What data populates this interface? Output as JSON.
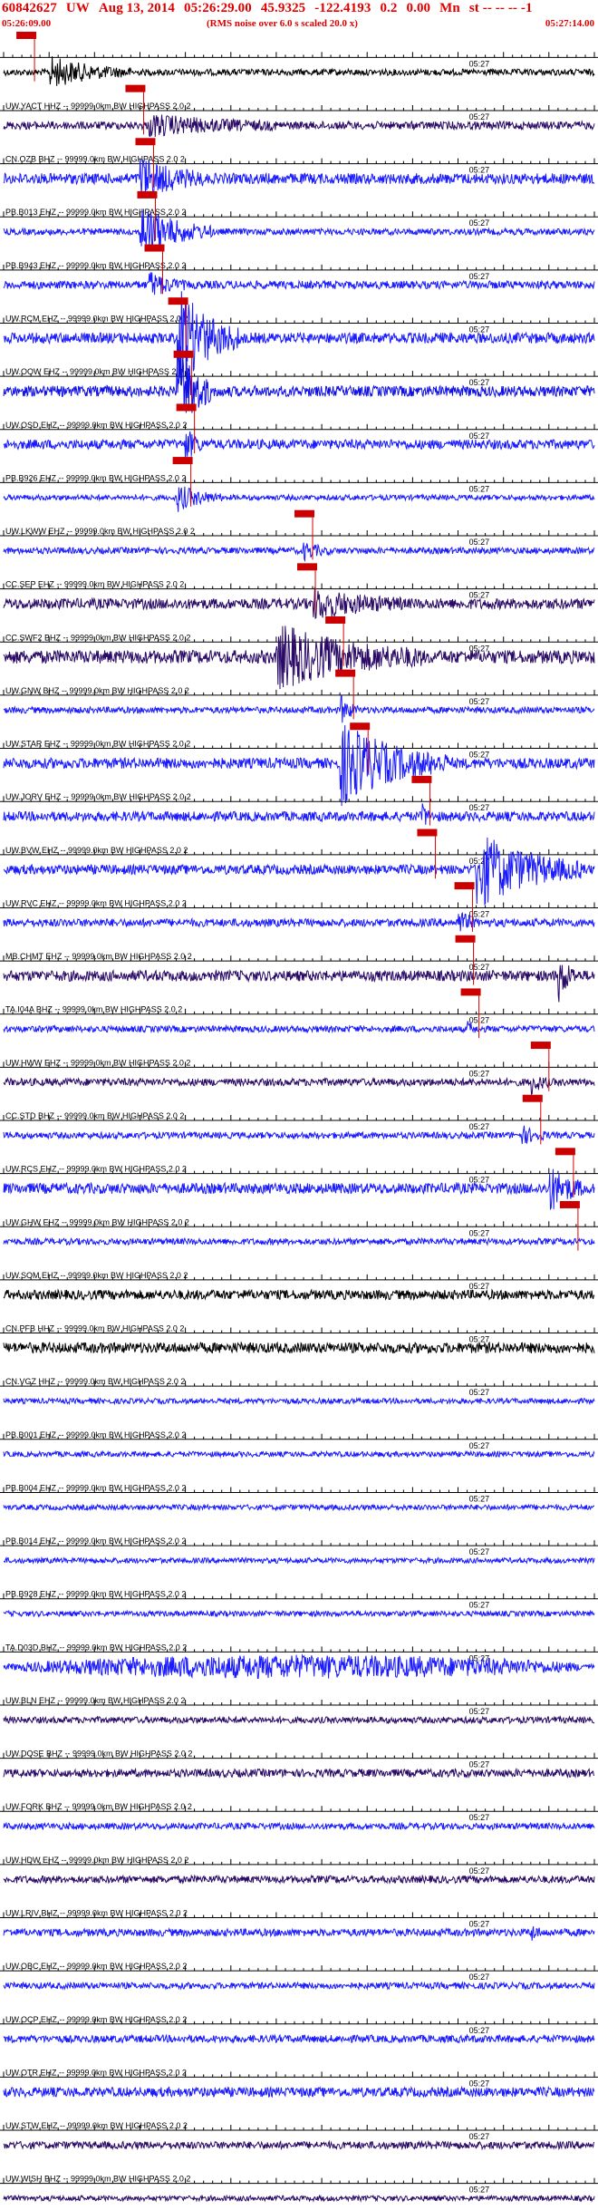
{
  "header": {
    "event_id": "60842627",
    "network": "UW",
    "date": "Aug 13, 2014",
    "origin_time": "05:26:29.00",
    "lat": "45.9325",
    "lon": "-122.4193",
    "depth": "0.2",
    "mag": "0.00",
    "mag_type": "Mn",
    "tail": "st -- -- --  -1",
    "start_time": "05:26:09.00",
    "scale_note": "(RMS noise over 6.0 s scaled 20.0 x)",
    "end_time": "05:27:14.00"
  },
  "colors": {
    "header_text": "#e00000",
    "pick_box": "#cc0000",
    "pick_line": "#dd0000",
    "axis": "#000000",
    "trace_palette": [
      "#000000",
      "#1a1aff",
      "#1010e6",
      "#2a0a66",
      "#1a1aff",
      "#0000dd"
    ]
  },
  "chart_data": {
    "type": "seismogram",
    "title": "60842627 UW Aug 13, 2014 05:26:29.00 45.9325 -122.4193 0.2 0.00 Mn",
    "x_axis": {
      "start": "05:26:09.00",
      "end": "05:27:14.00",
      "duration_s": 65,
      "minute_label": "05:27",
      "minute_offset_s": 51
    },
    "traces": [
      {
        "label": "",
        "color": 0,
        "amp": 0.12,
        "burst": [
          5,
          14,
          0.55
        ],
        "pick": 2.5
      },
      {
        "label": "UW.YACT HHZ -- 99999.0km BW  HIGHPASS  2.0  2",
        "color": 3,
        "amp": 0.15,
        "burst": [
          16,
          30,
          0.35
        ],
        "pick": 14.5
      },
      {
        "label": "CN.OZB BHZ -- 99999.0km BW  HIGHPASS  2.0  2",
        "color": 1,
        "amp": 0.2,
        "burst": [
          15,
          22,
          0.75
        ],
        "pick": 15.6
      },
      {
        "label": "PB.B013 EHZ -- 99999.0km BW  HIGHPASS  2.0  2",
        "color": 1,
        "amp": 0.12,
        "burst": [
          15,
          23,
          1.0
        ],
        "pick": 15.8
      },
      {
        "label": "PB.B943 EHZ -- 99999.0km BW  HIGHPASS  2.0  2",
        "color": 1,
        "amp": 0.15,
        "burst": [
          16,
          20,
          0.45
        ],
        "pick": 16.6
      },
      {
        "label": "UW.RCM EHZ -- 99999.0km BW  HIGHPASS  2.0  2",
        "color": 1,
        "amp": 0.2,
        "burst": [
          19,
          26,
          2.0
        ],
        "pick": 19.2
      },
      {
        "label": "UW.OOW EHZ -- 99999.0km BW  HIGHPASS  2.0  2",
        "color": 2,
        "amp": 0.2,
        "burst": [
          19,
          23,
          2.0
        ],
        "pick": 19.8
      },
      {
        "label": "UW.OSD EHZ -- 99999.0km BW  HIGHPASS  2.0  2",
        "color": 1,
        "amp": 0.18,
        "burst": [
          20,
          22,
          0.6
        ],
        "pick": 20.1
      },
      {
        "label": "PB.B926 EHZ -- 99999.0km BW  HIGHPASS  2.0  2",
        "color": 1,
        "amp": 0.1,
        "burst": [
          19,
          24,
          0.5
        ],
        "pick": 19.7
      },
      {
        "label": "UW.LKWW EHZ -- 99999.0km BW  HIGHPASS  2.0  2",
        "color": 1,
        "amp": 0.12,
        "burst": [
          33,
          36,
          0.3
        ],
        "pick": 33.1
      },
      {
        "label": "CC.SEP EHZ -- 99999.0km BW  HIGHPASS  2.0  2",
        "color": 3,
        "amp": 0.2,
        "burst": [
          34,
          44,
          0.5
        ],
        "pick": 33.4
      },
      {
        "label": "CC.SWF2 BHZ -- 99999.0km BW  HIGHPASS  2.0  2",
        "color": 3,
        "amp": 0.25,
        "burst": [
          30,
          46,
          1.1
        ],
        "pick": 36.5
      },
      {
        "label": "UW.GNW BHZ -- 99999.0km BW  HIGHPASS  2.0  2",
        "color": 1,
        "amp": 0.12,
        "burst": [
          37,
          39,
          0.55
        ],
        "pick": 37.6
      },
      {
        "label": "UW.STAR EHZ -- 99999.0km BW  HIGHPASS  2.0  2",
        "color": 1,
        "amp": 0.2,
        "burst": [
          37,
          49,
          1.5
        ],
        "pick": 39.2
      },
      {
        "label": "UW.JORV EHZ -- 99999.0km BW  HIGHPASS  2.0  2",
        "color": 1,
        "amp": 0.18,
        "burst": [
          46,
          47,
          0.5
        ],
        "pick": 46.0
      },
      {
        "label": "UW.BVW EHZ -- 99999.0km BW  HIGHPASS  2.0  2",
        "color": 1,
        "amp": 0.18,
        "burst": [
          52,
          64,
          1.4
        ],
        "pick": 46.6
      },
      {
        "label": "UW.RVC EHZ -- 99999.0km BW  HIGHPASS  2.0  2",
        "color": 1,
        "amp": 0.15,
        "burst": [
          50,
          52,
          0.5
        ],
        "pick": 50.7
      },
      {
        "label": "MB.CHMT EHZ -- 99999.0km BW  HIGHPASS  2.0  2",
        "color": 3,
        "amp": 0.2,
        "burst": [
          61,
          63,
          0.9
        ],
        "pick": 50.8
      },
      {
        "label": "TA.I04A BHZ -- 99999.0km BW  HIGHPASS  2.0  2",
        "color": 1,
        "amp": 0.12,
        "burst": [
          51,
          52,
          0.3
        ],
        "pick": 51.4
      },
      {
        "label": "UW.HWW EHZ -- 99999.0km BW  HIGHPASS  2.0  2",
        "color": 3,
        "amp": 0.14,
        "burst": [
          58,
          60,
          0.4
        ],
        "pick": 59.1
      },
      {
        "label": "CC.STD BHZ -- 99999.0km BW  HIGHPASS  2.0  2",
        "color": 1,
        "amp": 0.12,
        "burst": [
          57,
          60,
          0.3
        ],
        "pick": 58.2
      },
      {
        "label": "UW.RCS EHZ -- 99999.0km BW  HIGHPASS  2.0  2",
        "color": 1,
        "amp": 0.2,
        "burst": [
          60,
          64,
          0.8
        ],
        "pick": 61.8
      },
      {
        "label": "UW.GHW EHZ -- 99999.0km BW  HIGHPASS  2.0  2",
        "color": 1,
        "amp": 0.12,
        "burst": null,
        "pick": 62.3
      },
      {
        "label": "UW.SOM EHZ -- 99999.0km BW  HIGHPASS  2.0  2",
        "color": 0,
        "amp": 0.18,
        "burst": null,
        "pick": null
      },
      {
        "label": "CN.PFB HHZ -- 99999.0km BW  HIGHPASS  2.0  2",
        "color": 0,
        "amp": 0.2,
        "burst": null,
        "pick": null
      },
      {
        "label": "CN.VGZ HHZ -- 99999.0km BW  HIGHPASS  2.0  2",
        "color": 1,
        "amp": 0.1,
        "burst": null,
        "pick": null
      },
      {
        "label": "PB.B001 EHZ -- 99999.0km BW  HIGHPASS  2.0  2",
        "color": 1,
        "amp": 0.1,
        "burst": null,
        "pick": null
      },
      {
        "label": "PB.B004 EHZ -- 99999.0km BW  HIGHPASS  2.0  2",
        "color": 1,
        "amp": 0.1,
        "burst": null,
        "pick": null
      },
      {
        "label": "PB.B014 EHZ -- 99999.0km BW  HIGHPASS  2.0  2",
        "color": 1,
        "amp": 0.1,
        "burst": null,
        "pick": null
      },
      {
        "label": "PB.B928 EHZ -- 99999.0km BW  HIGHPASS  2.0  2",
        "color": 1,
        "amp": 0.1,
        "burst": null,
        "pick": null
      },
      {
        "label": "TA.D03D BHZ -- 99999.0km BW  HIGHPASS  2.0  2",
        "color": 1,
        "amp": 0.45,
        "burst": null,
        "pick": null,
        "envelope": true
      },
      {
        "label": "UW.BLN EHZ -- 99999.0km BW  HIGHPASS  2.0  2",
        "color": 3,
        "amp": 0.12,
        "burst": null,
        "pick": null
      },
      {
        "label": "UW.DOSE BHZ -- 99999.0km BW  HIGHPASS  2.0  2",
        "color": 3,
        "amp": 0.15,
        "burst": null,
        "pick": null
      },
      {
        "label": "UW.FORK BHZ -- 99999.0km BW  HIGHPASS  2.0  2",
        "color": 1,
        "amp": 0.12,
        "burst": null,
        "pick": null
      },
      {
        "label": "UW.HDW EHZ -- 99999.0km BW  HIGHPASS  2.0  2",
        "color": 3,
        "amp": 0.14,
        "burst": null,
        "pick": null
      },
      {
        "label": "UW.LRIV BHZ -- 99999.0km BW  HIGHPASS  2.0  2",
        "color": 1,
        "amp": 0.14,
        "burst": [
          58,
          59,
          0.4
        ],
        "pick": null
      },
      {
        "label": "UW.OBC EHZ -- 99999.0km BW  HIGHPASS  2.0  2",
        "color": 1,
        "amp": 0.12,
        "burst": null,
        "pick": null
      },
      {
        "label": "UW.OCP EHZ -- 99999.0km BW  HIGHPASS  2.0  2",
        "color": 1,
        "amp": 0.14,
        "burst": null,
        "pick": null
      },
      {
        "label": "UW.OTR EHZ -- 99999.0km BW  HIGHPASS  2.0  2",
        "color": 1,
        "amp": 0.18,
        "burst": null,
        "pick": null
      },
      {
        "label": "UW.STW EHZ -- 99999.0km BW  HIGHPASS  2.0  2",
        "color": 3,
        "amp": 0.14,
        "burst": null,
        "pick": null
      },
      {
        "label": "UW.WISH BHZ -- 99999.0km BW  HIGHPASS  2.0  2",
        "color": 3,
        "amp": 0.1,
        "burst": null,
        "pick": null
      }
    ]
  }
}
